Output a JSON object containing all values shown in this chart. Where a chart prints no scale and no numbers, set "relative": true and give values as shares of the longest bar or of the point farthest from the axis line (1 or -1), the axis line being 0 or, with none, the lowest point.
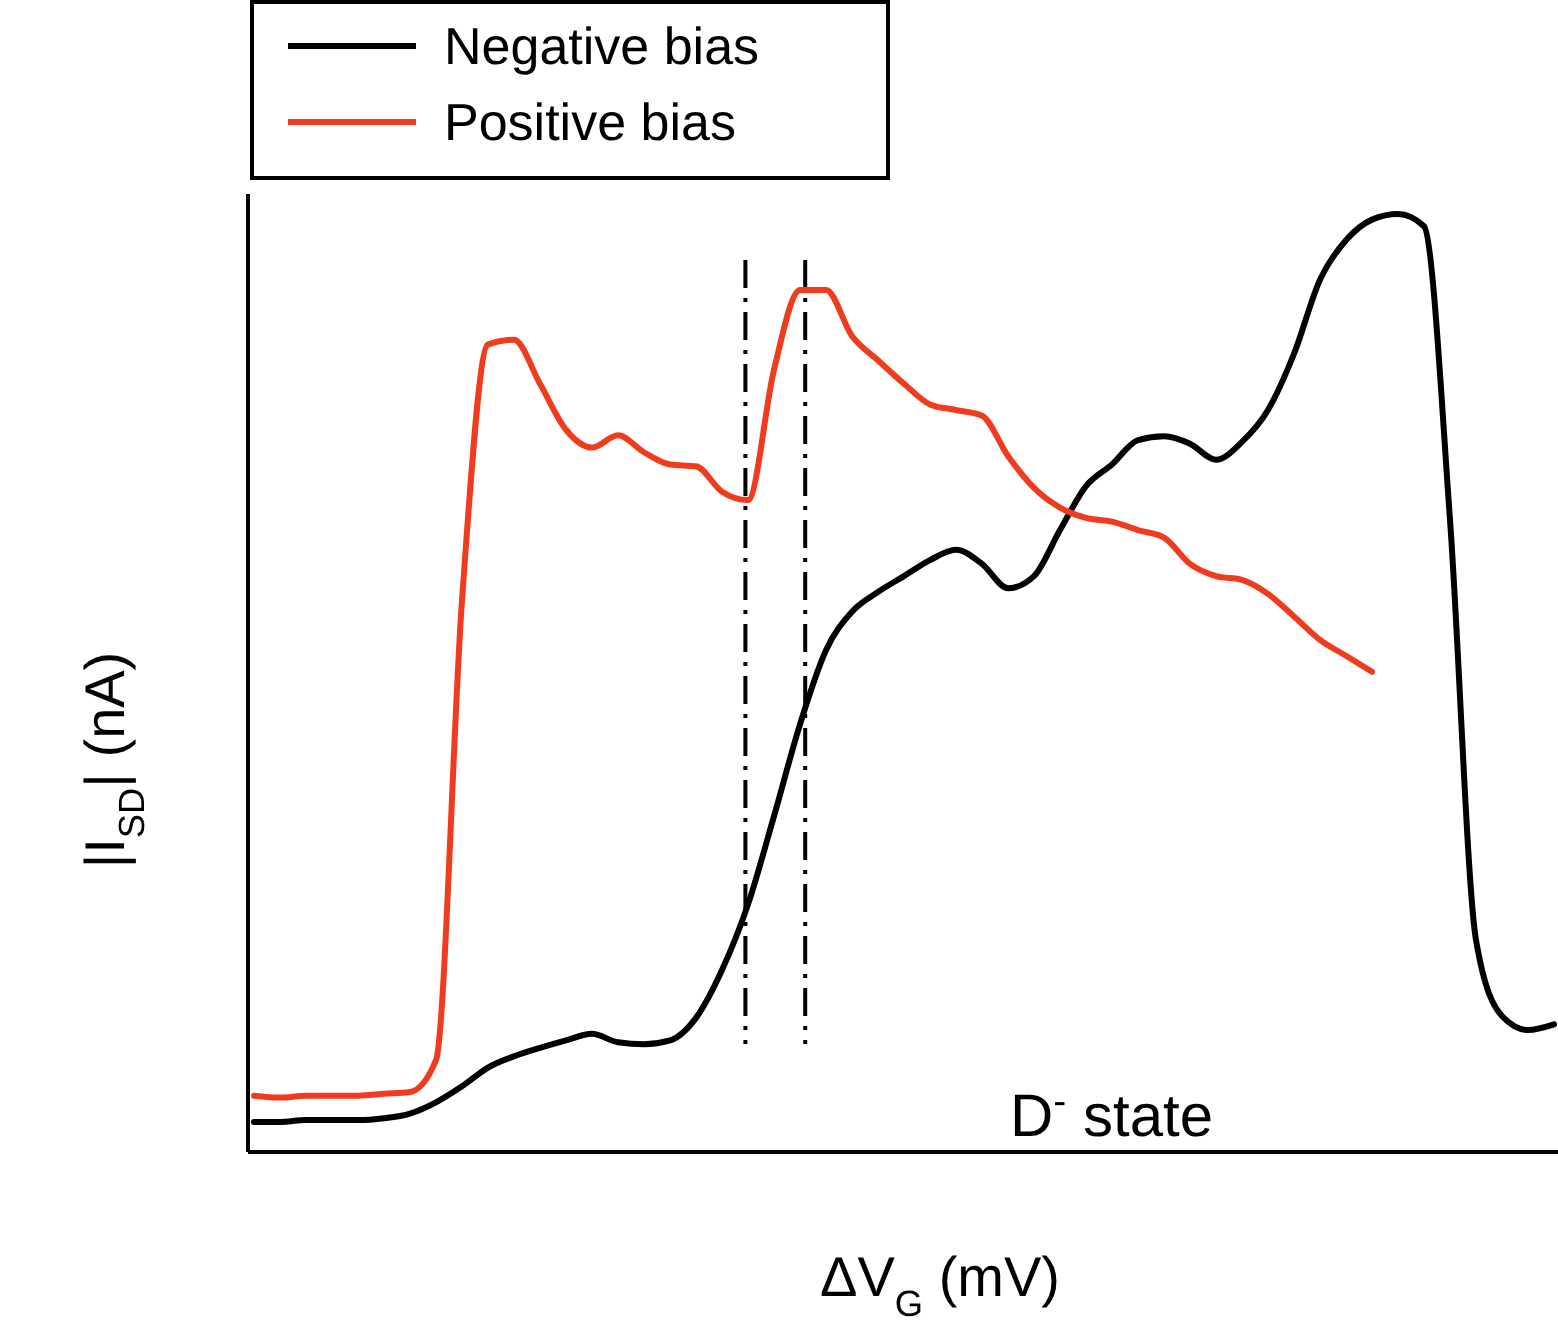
{
  "chart_data": {
    "type": "line",
    "relative": true,
    "xlabel": "ΔV$_{G}$ (mV)",
    "ylabel": "|I$_{SD}$| (nA)",
    "legend": "top left",
    "line_style": "solid",
    "annotations": [
      {
        "text": "D$^{-}$ state"
      }
    ],
    "categories": [
      null,
      null,
      null,
      null,
      null,
      null,
      null,
      null,
      null,
      null,
      null,
      null,
      null,
      null,
      null,
      null,
      null,
      null,
      null,
      null,
      null,
      null,
      null,
      null,
      null,
      null,
      null,
      null,
      null,
      null,
      null,
      null,
      null,
      null,
      null,
      null,
      null,
      null,
      null,
      null,
      null,
      null,
      null,
      null,
      null,
      null,
      null,
      null,
      null,
      null,
      null
    ],
    "series": [
      {
        "name": "Negative bias",
        "color": "#000000",
        "values": [
          0.032,
          0.032,
          0.034,
          0.034,
          0.034,
          0.036,
          0.041,
          0.053,
          0.07,
          0.09,
          0.102,
          0.111,
          0.119,
          0.126,
          0.117,
          0.115,
          0.119,
          0.143,
          0.194,
          0.264,
          0.358,
          0.456,
          0.535,
          0.576,
          0.597,
          0.614,
          0.631,
          0.642,
          0.627,
          0.601,
          0.614,
          0.663,
          0.71,
          0.733,
          0.759,
          0.763,
          0.755,
          0.738,
          0.757,
          0.791,
          0.851,
          0.93,
          0.972,
          0.994,
          1,
          0.987,
          0.674,
          0.226,
          0.145,
          0.13,
          0.136
        ]
      },
      {
        "name": "Positive bias",
        "color": "#f03c1e",
        "values": [
          0.06,
          0.058,
          0.06,
          0.06,
          0.06,
          0.062,
          0.064,
          0.098,
          0.588,
          0.861,
          0.866,
          0.819,
          0.77,
          0.751,
          0.764,
          0.746,
          0.733,
          0.731,
          0.704,
          0.695,
          0.834,
          0.919,
          0.919,
          0.87,
          0.844,
          0.819,
          0.797,
          0.791,
          0.785,
          0.742,
          0.708,
          0.687,
          0.676,
          0.672,
          0.663,
          0.655,
          0.627,
          0.614,
          0.61,
          0.595,
          0.571,
          0.546,
          0.529,
          0.512,
          null,
          null,
          null,
          null,
          null,
          null,
          null
        ]
      }
    ]
  }
}
